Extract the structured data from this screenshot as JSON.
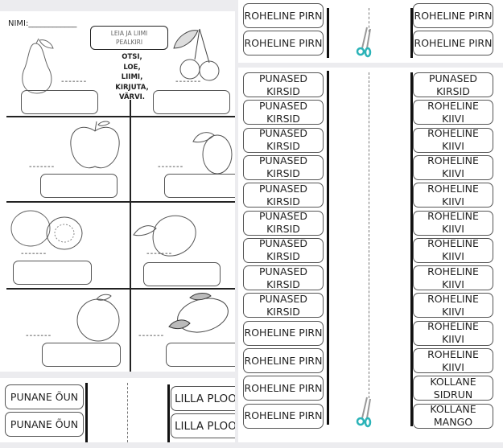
{
  "worksheet": {
    "name_label": "NIMI:____________",
    "title_box": "LEIA JA LIIMI\nPEALKIRI",
    "instructions": [
      "OTSI,",
      "LOE,",
      "LIIMI,",
      "KIRJUTA,",
      "VÄRVI."
    ],
    "blank": "-------",
    "fruits": [
      "pear",
      "cherries",
      "apple",
      "plum",
      "kiwi",
      "mango",
      "orange",
      "lemon"
    ]
  },
  "bottom_strip": {
    "left_labels": [
      "PUNANE ÕUN",
      "PUNANE ÕUN"
    ],
    "right_labels": [
      "LILLA PLOO",
      "LILLA PLOO"
    ]
  },
  "top_strip": {
    "left_labels": [
      "ROHELINE PIRN",
      "ROHELINE PIRN"
    ],
    "right_labels": [
      "ROHELINE PIRN",
      "ROHELINE PIRN"
    ]
  },
  "main_strip": {
    "left_labels": [
      "PUNASED\nKIRSID",
      "PUNASED\nKIRSID",
      "PUNASED\nKIRSID",
      "PUNASED\nKIRSID",
      "PUNASED\nKIRSID",
      "PUNASED\nKIRSID",
      "PUNASED\nKIRSID",
      "PUNASED\nKIRSID",
      "PUNASED\nKIRSID",
      "ROHELINE PIRN",
      "ROHELINE PIRN",
      "ROHELINE PIRN",
      "ROHELINE PIRN"
    ],
    "right_labels": [
      "PUNASED\nKIRSID",
      "ROHELINE\nKIIVI",
      "ROHELINE\nKIIVI",
      "ROHELINE\nKIIVI",
      "ROHELINE\nKIIVI",
      "ROHELINE\nKIIVI",
      "ROHELINE\nKIIVI",
      "ROHELINE\nKIIVI",
      "ROHELINE\nKIIVI",
      "ROHELINE\nKIIVI",
      "ROHELINE\nKIIVI",
      "KOLLANE\nSIDRUN",
      "KOLLANE\nMANGO"
    ]
  },
  "colors": {
    "scissors": "#2bb3b8",
    "background": "#ececef"
  }
}
